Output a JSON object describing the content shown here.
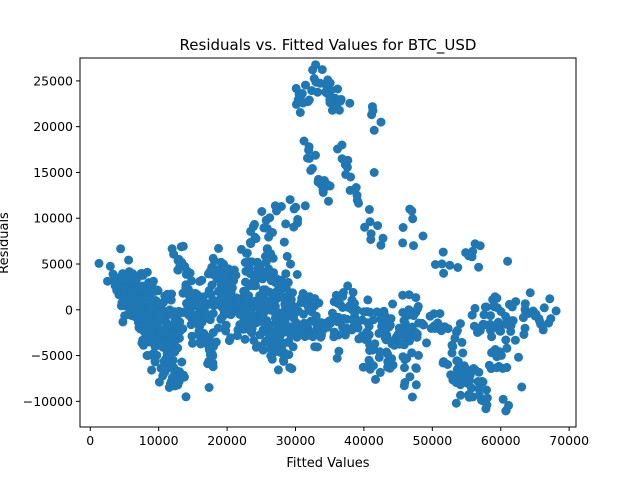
{
  "chart_data": {
    "type": "scatter",
    "title": "Residuals vs. Fitted Values for BTC_USD",
    "xlabel": "Fitted Values",
    "ylabel": "Residuals",
    "xlim": [
      -1500,
      71000
    ],
    "ylim": [
      -12800,
      27500
    ],
    "xticks": [
      0,
      10000,
      20000,
      30000,
      40000,
      50000,
      60000,
      70000
    ],
    "yticks": [
      -10000,
      -5000,
      0,
      5000,
      10000,
      15000,
      20000,
      25000
    ],
    "grid": false,
    "marker_color": "#1f77b4",
    "clusters": [
      {
        "x0": 1500,
        "y0": 4500,
        "x1": 4000,
        "y1": 3000,
        "n": 8,
        "spread": 500
      },
      {
        "x0": 4000,
        "y0": 3500,
        "x1": 13000,
        "y1": -8000,
        "n": 150,
        "spread": 1400
      },
      {
        "x0": 6000,
        "y0": 3500,
        "x1": 13000,
        "y1": -3000,
        "n": 60,
        "spread": 1400
      },
      {
        "x0": 5500,
        "y0": 1500,
        "x1": 12000,
        "y1": -2000,
        "n": 60,
        "spread": 1500
      },
      {
        "x0": 12500,
        "y0": 6200,
        "x1": 18000,
        "y1": -6000,
        "n": 80,
        "spread": 1300
      },
      {
        "x0": 12000,
        "y0": -2000,
        "x1": 20000,
        "y1": 3000,
        "n": 60,
        "spread": 1500
      },
      {
        "x0": 18000,
        "y0": 4000,
        "x1": 29000,
        "y1": -4500,
        "n": 120,
        "spread": 1500
      },
      {
        "x0": 18000,
        "y0": -1000,
        "x1": 30000,
        "y1": 0,
        "n": 100,
        "spread": 1600
      },
      {
        "x0": 22000,
        "y0": 5000,
        "x1": 30000,
        "y1": 2000,
        "n": 60,
        "spread": 1600
      },
      {
        "x0": 23000,
        "y0": 8000,
        "x1": 31000,
        "y1": 10500,
        "n": 25,
        "spread": 1200
      },
      {
        "x0": 29000,
        "y0": 0,
        "x1": 36000,
        "y1": -2000,
        "n": 70,
        "spread": 1500
      },
      {
        "x0": 30000,
        "y0": 22500,
        "x1": 34000,
        "y1": 26000,
        "n": 20,
        "spread": 800
      },
      {
        "x0": 34000,
        "y0": 24000,
        "x1": 38000,
        "y1": 21000,
        "n": 20,
        "spread": 900
      },
      {
        "x0": 31000,
        "y0": 18000,
        "x1": 35000,
        "y1": 12000,
        "n": 20,
        "spread": 900
      },
      {
        "x0": 36000,
        "y0": 18000,
        "x1": 41000,
        "y1": 9000,
        "n": 18,
        "spread": 900
      },
      {
        "x0": 41000,
        "y0": 22000,
        "x1": 42000,
        "y1": 20000,
        "n": 4,
        "spread": 500
      },
      {
        "x0": 42000,
        "y0": 9000,
        "x1": 50000,
        "y1": 8000,
        "n": 8,
        "spread": 1000
      },
      {
        "x0": 36000,
        "y0": 0,
        "x1": 48000,
        "y1": -3000,
        "n": 90,
        "spread": 1700
      },
      {
        "x0": 40000,
        "y0": -4000,
        "x1": 48000,
        "y1": -8000,
        "n": 35,
        "spread": 1500
      },
      {
        "x0": 46000,
        "y0": 0,
        "x1": 55000,
        "y1": -5000,
        "n": 45,
        "spread": 1500
      },
      {
        "x0": 50000,
        "y0": 4500,
        "x1": 57000,
        "y1": 6000,
        "n": 12,
        "spread": 900
      },
      {
        "x0": 52000,
        "y0": -6000,
        "x1": 58000,
        "y1": -9000,
        "n": 45,
        "spread": 1200
      },
      {
        "x0": 56000,
        "y0": -1000,
        "x1": 68000,
        "y1": -1000,
        "n": 60,
        "spread": 1300
      },
      {
        "x0": 58000,
        "y0": -4000,
        "x1": 63000,
        "y1": -6000,
        "n": 18,
        "spread": 1100
      },
      {
        "x0": 60000,
        "y0": -10000,
        "x1": 61000,
        "y1": -11000,
        "n": 3,
        "spread": 400
      }
    ],
    "outliers": [
      {
        "x": 14000,
        "y": -9500
      },
      {
        "x": 53500,
        "y": -10200
      },
      {
        "x": 60800,
        "y": -11000
      },
      {
        "x": 61000,
        "y": 5300
      },
      {
        "x": 57000,
        "y": 7000
      },
      {
        "x": 47000,
        "y": 10800
      },
      {
        "x": 42500,
        "y": 20500
      },
      {
        "x": 41500,
        "y": 15000
      },
      {
        "x": 32500,
        "y": 26200
      },
      {
        "x": 42000,
        "y": 9200
      }
    ]
  }
}
